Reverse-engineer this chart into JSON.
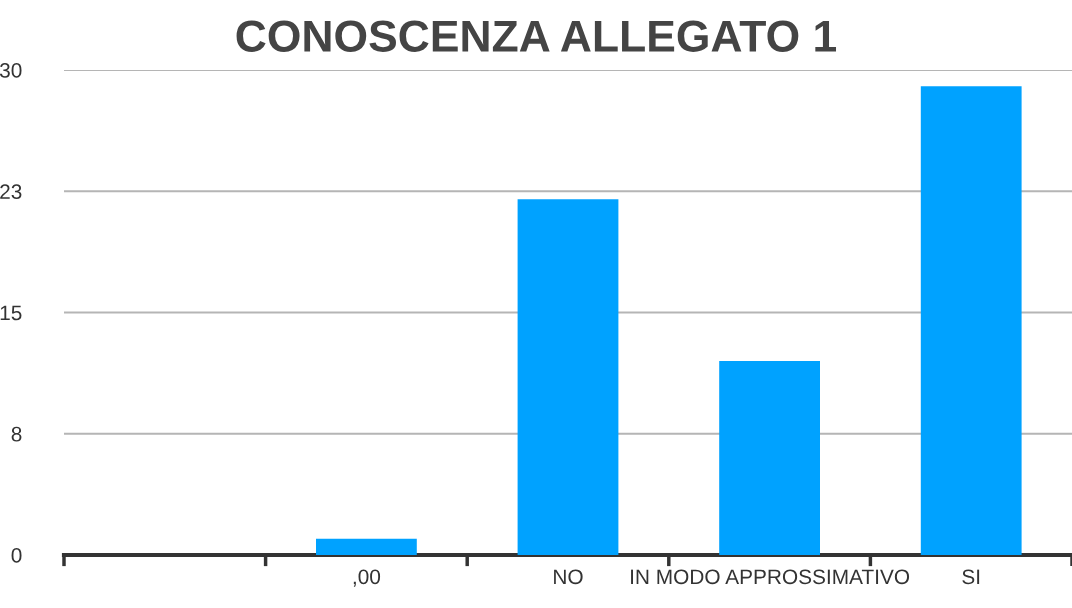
{
  "chart_data": {
    "type": "bar",
    "title": "CONOSCENZA ALLEGATO 1",
    "categories": [
      null,
      ",00",
      "NO",
      "IN MODO APPROSSIMATIVO",
      "SI"
    ],
    "values": [
      null,
      1,
      22,
      12,
      29
    ],
    "color": "#00a2ff",
    "ylim": [
      0,
      30
    ],
    "yticks": [
      0,
      {
        "value": 7.5,
        "label": "8"
      },
      15,
      {
        "value": 22.5,
        "label": "23"
      },
      30
    ],
    "grid": "y"
  }
}
